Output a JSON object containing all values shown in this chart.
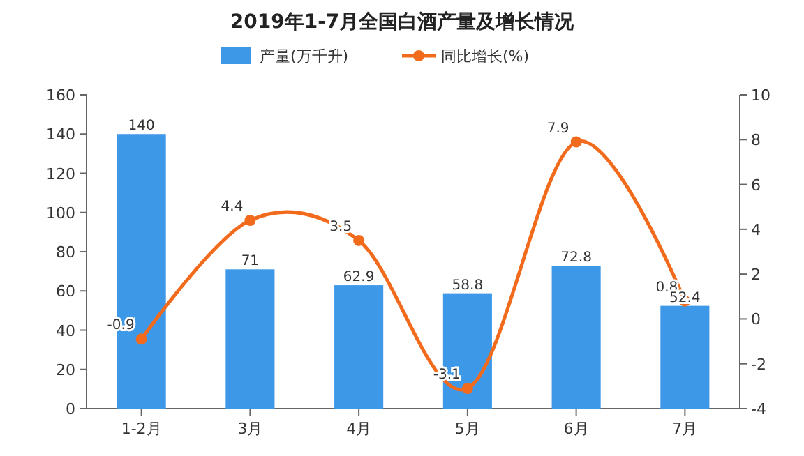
{
  "chart_data": {
    "type": "bar",
    "title": "2019年1-7月全国白酒产量及增长情况",
    "categories": [
      "1-2月",
      "3月",
      "4月",
      "5月",
      "6月",
      "7月"
    ],
    "series": [
      {
        "name": "产量(万千升)",
        "color": "#3d98e8",
        "values": [
          140,
          71,
          62.9,
          58.8,
          72.8,
          52.4
        ]
      },
      {
        "name": "同比增长(%)",
        "type": "line",
        "axis": "y2",
        "color": "#f26b1d",
        "values": [
          -0.9,
          4.4,
          3.5,
          -3.1,
          7.9,
          0.8
        ]
      }
    ],
    "ylim": [
      0,
      160
    ],
    "yticks": [
      0,
      20,
      40,
      60,
      80,
      100,
      120,
      140,
      160
    ],
    "y2lim": [
      -4,
      10
    ],
    "y2ticks": [
      -4,
      -2,
      0,
      2,
      4,
      6,
      8,
      10
    ],
    "data_labels": true,
    "legend": "top",
    "marker": "circle",
    "grid": false
  }
}
